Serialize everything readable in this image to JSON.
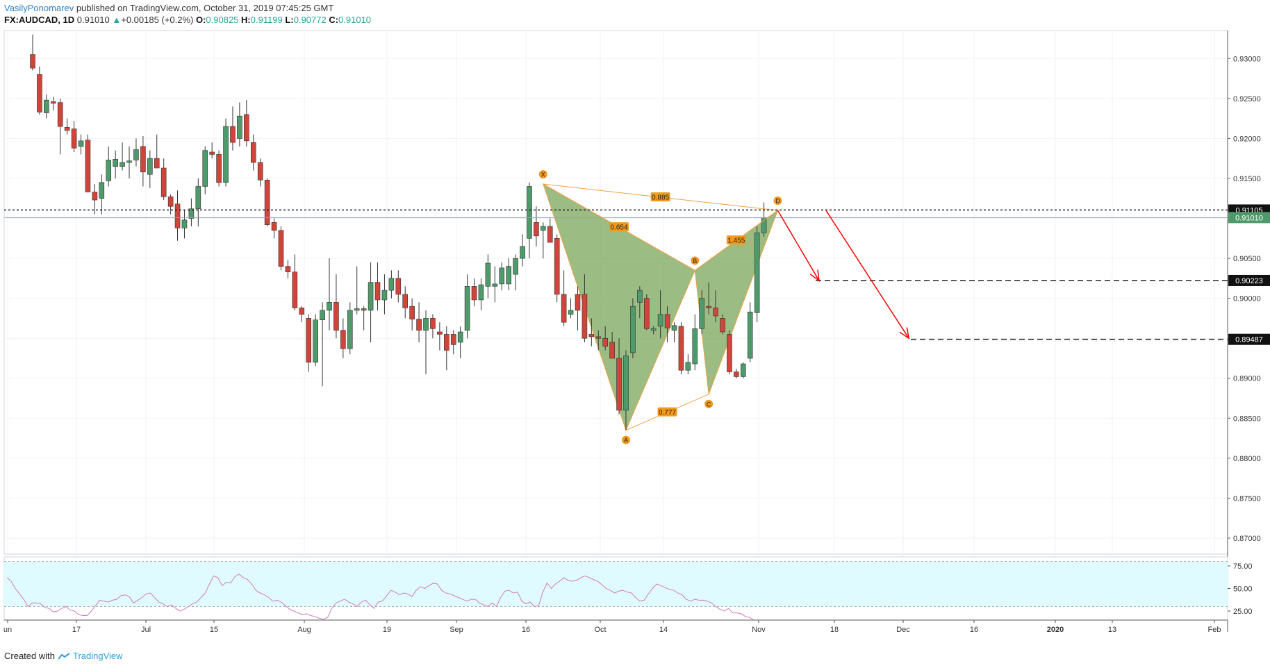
{
  "header": {
    "author": "VasilyPonomarev",
    "published": "published on TradingView.com, October 31, 2019 07:45:25 GMT",
    "symbol": "FX:AUDCAD, 1D",
    "last": "0.91010",
    "change": "+0.00185 (+0.2%)",
    "o_label": "O:",
    "o": "0.90825",
    "h_label": "H:",
    "h": "0.91199",
    "l_label": "L:",
    "l": "0.90772",
    "c_label": "C:",
    "c": "0.91010"
  },
  "footer": {
    "created": "Created with",
    "brand": "TradingView"
  },
  "colors": {
    "up": "#4f9a6b",
    "down": "#d0453a",
    "pattern_fill": "#7aa55a",
    "pattern_stroke": "#f0a040",
    "label_bg": "#f29a1e",
    "arrow": "#ff0000",
    "rsi_line": "#d279b8",
    "rsi_band": "#e0fbff"
  },
  "chart_data": [
    {
      "type": "candlestick",
      "symbol": "AUDCAD",
      "timeframe": "1D",
      "ylim": [
        0.868,
        0.9335
      ],
      "y_ticks": [
        "0.93000",
        "0.92500",
        "0.92000",
        "0.91500",
        "0.91000",
        "0.90500",
        "0.90000",
        "0.89500",
        "0.89000",
        "0.88500",
        "0.88000",
        "0.87500",
        "0.87000"
      ],
      "x_ticks": [
        "un",
        "17",
        "Jul",
        "15",
        "Aug",
        "19",
        "Sep",
        "16",
        "Oct",
        "14",
        "Nov",
        "18",
        "Dec",
        "16",
        "2020",
        "13",
        "Feb"
      ],
      "price_labels": [
        {
          "value": 0.91105,
          "text": "0.91105",
          "style": "black"
        },
        {
          "value": 0.9101,
          "text": "0.91010",
          "style": "green"
        },
        {
          "value": 0.90223,
          "text": "0.90223",
          "style": "black"
        },
        {
          "value": 0.89487,
          "text": "0.89487",
          "style": "black"
        }
      ],
      "candles": [
        {
          "o": 0.9305,
          "h": 0.933,
          "l": 0.9285,
          "c": 0.9288
        },
        {
          "o": 0.928,
          "h": 0.929,
          "l": 0.923,
          "c": 0.9233
        },
        {
          "o": 0.9232,
          "h": 0.9255,
          "l": 0.9225,
          "c": 0.9248
        },
        {
          "o": 0.9246,
          "h": 0.9252,
          "l": 0.9235,
          "c": 0.9244
        },
        {
          "o": 0.9245,
          "h": 0.925,
          "l": 0.918,
          "c": 0.9215
        },
        {
          "o": 0.9214,
          "h": 0.9225,
          "l": 0.9205,
          "c": 0.921
        },
        {
          "o": 0.9212,
          "h": 0.9222,
          "l": 0.9183,
          "c": 0.9188
        },
        {
          "o": 0.919,
          "h": 0.9205,
          "l": 0.918,
          "c": 0.9197
        },
        {
          "o": 0.9198,
          "h": 0.9205,
          "l": 0.9135,
          "c": 0.9133
        },
        {
          "o": 0.9133,
          "h": 0.9143,
          "l": 0.9105,
          "c": 0.9123
        },
        {
          "o": 0.9125,
          "h": 0.9155,
          "l": 0.9105,
          "c": 0.9145
        },
        {
          "o": 0.9147,
          "h": 0.919,
          "l": 0.914,
          "c": 0.9173
        },
        {
          "o": 0.9165,
          "h": 0.9185,
          "l": 0.915,
          "c": 0.9174
        },
        {
          "o": 0.9165,
          "h": 0.9195,
          "l": 0.916,
          "c": 0.917
        },
        {
          "o": 0.917,
          "h": 0.919,
          "l": 0.915,
          "c": 0.9172
        },
        {
          "o": 0.9173,
          "h": 0.92,
          "l": 0.9165,
          "c": 0.9186
        },
        {
          "o": 0.919,
          "h": 0.9203,
          "l": 0.914,
          "c": 0.9158
        },
        {
          "o": 0.9155,
          "h": 0.9185,
          "l": 0.9138,
          "c": 0.9175
        },
        {
          "o": 0.9175,
          "h": 0.9205,
          "l": 0.9165,
          "c": 0.9163
        },
        {
          "o": 0.9163,
          "h": 0.9175,
          "l": 0.9123,
          "c": 0.9127
        },
        {
          "o": 0.9127,
          "h": 0.913,
          "l": 0.9105,
          "c": 0.9115
        },
        {
          "o": 0.9118,
          "h": 0.9135,
          "l": 0.9072,
          "c": 0.9088
        },
        {
          "o": 0.9088,
          "h": 0.911,
          "l": 0.9075,
          "c": 0.9098
        },
        {
          "o": 0.91,
          "h": 0.9125,
          "l": 0.909,
          "c": 0.9112
        },
        {
          "o": 0.9112,
          "h": 0.915,
          "l": 0.909,
          "c": 0.914
        },
        {
          "o": 0.914,
          "h": 0.919,
          "l": 0.913,
          "c": 0.9185
        },
        {
          "o": 0.9183,
          "h": 0.9195,
          "l": 0.9175,
          "c": 0.918
        },
        {
          "o": 0.918,
          "h": 0.9185,
          "l": 0.914,
          "c": 0.9145
        },
        {
          "o": 0.9145,
          "h": 0.9225,
          "l": 0.914,
          "c": 0.9215
        },
        {
          "o": 0.9215,
          "h": 0.924,
          "l": 0.9185,
          "c": 0.9195
        },
        {
          "o": 0.92,
          "h": 0.9245,
          "l": 0.919,
          "c": 0.9228
        },
        {
          "o": 0.923,
          "h": 0.9248,
          "l": 0.919,
          "c": 0.9197
        },
        {
          "o": 0.9195,
          "h": 0.9205,
          "l": 0.916,
          "c": 0.917
        },
        {
          "o": 0.917,
          "h": 0.9175,
          "l": 0.914,
          "c": 0.9148
        },
        {
          "o": 0.9148,
          "h": 0.915,
          "l": 0.909,
          "c": 0.9092
        },
        {
          "o": 0.9095,
          "h": 0.91,
          "l": 0.9075,
          "c": 0.9085
        },
        {
          "o": 0.9085,
          "h": 0.909,
          "l": 0.9035,
          "c": 0.904
        },
        {
          "o": 0.904,
          "h": 0.9048,
          "l": 0.9025,
          "c": 0.9033
        },
        {
          "o": 0.9033,
          "h": 0.9055,
          "l": 0.8985,
          "c": 0.8988
        },
        {
          "o": 0.8988,
          "h": 0.899,
          "l": 0.897,
          "c": 0.898
        },
        {
          "o": 0.8975,
          "h": 0.898,
          "l": 0.8908,
          "c": 0.892
        },
        {
          "o": 0.892,
          "h": 0.898,
          "l": 0.8915,
          "c": 0.8973
        },
        {
          "o": 0.8973,
          "h": 0.8995,
          "l": 0.889,
          "c": 0.8985
        },
        {
          "o": 0.8985,
          "h": 0.905,
          "l": 0.896,
          "c": 0.8995
        },
        {
          "o": 0.8995,
          "h": 0.903,
          "l": 0.895,
          "c": 0.896
        },
        {
          "o": 0.896,
          "h": 0.8975,
          "l": 0.8925,
          "c": 0.8937
        },
        {
          "o": 0.8937,
          "h": 0.8995,
          "l": 0.893,
          "c": 0.8985
        },
        {
          "o": 0.8985,
          "h": 0.904,
          "l": 0.898,
          "c": 0.8987
        },
        {
          "o": 0.8987,
          "h": 0.899,
          "l": 0.896,
          "c": 0.8985
        },
        {
          "o": 0.8985,
          "h": 0.9045,
          "l": 0.8945,
          "c": 0.902
        },
        {
          "o": 0.902,
          "h": 0.9045,
          "l": 0.8985,
          "c": 0.8998
        },
        {
          "o": 0.8998,
          "h": 0.903,
          "l": 0.898,
          "c": 0.901
        },
        {
          "o": 0.901,
          "h": 0.9035,
          "l": 0.9,
          "c": 0.9025
        },
        {
          "o": 0.9025,
          "h": 0.9035,
          "l": 0.8995,
          "c": 0.9005
        },
        {
          "o": 0.9005,
          "h": 0.9015,
          "l": 0.8975,
          "c": 0.8988
        },
        {
          "o": 0.899,
          "h": 0.9,
          "l": 0.896,
          "c": 0.8974
        },
        {
          "o": 0.8974,
          "h": 0.8995,
          "l": 0.8945,
          "c": 0.896
        },
        {
          "o": 0.896,
          "h": 0.8985,
          "l": 0.8905,
          "c": 0.8975
        },
        {
          "o": 0.8975,
          "h": 0.898,
          "l": 0.895,
          "c": 0.8962
        },
        {
          "o": 0.8958,
          "h": 0.897,
          "l": 0.8935,
          "c": 0.8955
        },
        {
          "o": 0.8955,
          "h": 0.8965,
          "l": 0.891,
          "c": 0.8935
        },
        {
          "o": 0.8955,
          "h": 0.896,
          "l": 0.893,
          "c": 0.8942
        },
        {
          "o": 0.8945,
          "h": 0.8965,
          "l": 0.8925,
          "c": 0.8958
        },
        {
          "o": 0.896,
          "h": 0.903,
          "l": 0.895,
          "c": 0.9015
        },
        {
          "o": 0.9015,
          "h": 0.9025,
          "l": 0.899,
          "c": 0.8998
        },
        {
          "o": 0.8998,
          "h": 0.9025,
          "l": 0.8985,
          "c": 0.9017
        },
        {
          "o": 0.9015,
          "h": 0.9055,
          "l": 0.9,
          "c": 0.9044
        },
        {
          "o": 0.9015,
          "h": 0.904,
          "l": 0.8995,
          "c": 0.9018
        },
        {
          "o": 0.9018,
          "h": 0.9045,
          "l": 0.901,
          "c": 0.9038
        },
        {
          "o": 0.9018,
          "h": 0.905,
          "l": 0.901,
          "c": 0.904
        },
        {
          "o": 0.903,
          "h": 0.9055,
          "l": 0.901,
          "c": 0.905
        },
        {
          "o": 0.905,
          "h": 0.908,
          "l": 0.904,
          "c": 0.9065
        },
        {
          "o": 0.9075,
          "h": 0.9145,
          "l": 0.905,
          "c": 0.914
        },
        {
          "o": 0.9095,
          "h": 0.9115,
          "l": 0.9065,
          "c": 0.9078
        },
        {
          "o": 0.9085,
          "h": 0.9095,
          "l": 0.905,
          "c": 0.909
        },
        {
          "o": 0.909,
          "h": 0.91,
          "l": 0.907,
          "c": 0.907
        },
        {
          "o": 0.9075,
          "h": 0.908,
          "l": 0.8995,
          "c": 0.9005
        },
        {
          "o": 0.9005,
          "h": 0.9035,
          "l": 0.8965,
          "c": 0.897
        },
        {
          "o": 0.898,
          "h": 0.9,
          "l": 0.8975,
          "c": 0.8985
        },
        {
          "o": 0.9005,
          "h": 0.9015,
          "l": 0.896,
          "c": 0.8985
        },
        {
          "o": 0.9005,
          "h": 0.903,
          "l": 0.8945,
          "c": 0.895
        },
        {
          "o": 0.8955,
          "h": 0.8975,
          "l": 0.894,
          "c": 0.8952
        },
        {
          "o": 0.8952,
          "h": 0.896,
          "l": 0.8935,
          "c": 0.895
        },
        {
          "o": 0.895,
          "h": 0.8965,
          "l": 0.8935,
          "c": 0.894
        },
        {
          "o": 0.8945,
          "h": 0.8958,
          "l": 0.8925,
          "c": 0.8925
        },
        {
          "o": 0.8925,
          "h": 0.895,
          "l": 0.8855,
          "c": 0.886
        },
        {
          "o": 0.886,
          "h": 0.8935,
          "l": 0.8835,
          "c": 0.8928
        },
        {
          "o": 0.8932,
          "h": 0.9,
          "l": 0.8925,
          "c": 0.899
        },
        {
          "o": 0.8995,
          "h": 0.9015,
          "l": 0.8975,
          "c": 0.901
        },
        {
          "o": 0.9,
          "h": 0.9005,
          "l": 0.896,
          "c": 0.8962
        },
        {
          "o": 0.896,
          "h": 0.8965,
          "l": 0.8955,
          "c": 0.8962
        },
        {
          "o": 0.8965,
          "h": 0.901,
          "l": 0.895,
          "c": 0.898
        },
        {
          "o": 0.898,
          "h": 0.899,
          "l": 0.8945,
          "c": 0.8963
        },
        {
          "o": 0.896,
          "h": 0.897,
          "l": 0.8945,
          "c": 0.8966
        },
        {
          "o": 0.8965,
          "h": 0.897,
          "l": 0.8905,
          "c": 0.891
        },
        {
          "o": 0.891,
          "h": 0.893,
          "l": 0.8905,
          "c": 0.892
        },
        {
          "o": 0.8918,
          "h": 0.898,
          "l": 0.891,
          "c": 0.8962
        },
        {
          "o": 0.8962,
          "h": 0.901,
          "l": 0.8955,
          "c": 0.9
        },
        {
          "o": 0.899,
          "h": 0.902,
          "l": 0.898,
          "c": 0.8988
        },
        {
          "o": 0.8988,
          "h": 0.901,
          "l": 0.897,
          "c": 0.8978
        },
        {
          "o": 0.8975,
          "h": 0.898,
          "l": 0.8955,
          "c": 0.8958
        },
        {
          "o": 0.8955,
          "h": 0.896,
          "l": 0.8905,
          "c": 0.8908
        },
        {
          "o": 0.8908,
          "h": 0.8912,
          "l": 0.89,
          "c": 0.8902
        },
        {
          "o": 0.8902,
          "h": 0.892,
          "l": 0.89,
          "c": 0.8918
        },
        {
          "o": 0.8925,
          "h": 0.8995,
          "l": 0.892,
          "c": 0.8983
        },
        {
          "o": 0.8982,
          "h": 0.909,
          "l": 0.897,
          "c": 0.9082
        },
        {
          "o": 0.9082,
          "h": 0.912,
          "l": 0.9077,
          "c": 0.9101
        }
      ],
      "pattern": {
        "name": "XABCD",
        "points": [
          {
            "label": "X",
            "i": 74,
            "price": 0.9143
          },
          {
            "label": "A",
            "i": 86,
            "price": 0.8835
          },
          {
            "label": "B",
            "i": 96,
            "price": 0.9035
          },
          {
            "label": "C",
            "i": 98,
            "price": 0.888
          },
          {
            "label": "D",
            "i": 108,
            "price": 0.911
          }
        ],
        "ratios": [
          "0.654",
          "0.777",
          "1.455",
          "0.885"
        ]
      },
      "targets": [
        {
          "from": [
            108,
            0.911
          ],
          "to": [
            114,
            0.9022
          ]
        },
        {
          "from": [
            115,
            0.911
          ],
          "to": [
            127,
            0.895
          ]
        }
      ]
    },
    {
      "type": "line",
      "name": "RSI",
      "ylim": [
        15,
        85
      ],
      "y_ticks": [
        "75.00",
        "50.00",
        "25.00"
      ],
      "band": [
        30,
        80
      ],
      "values": [
        62,
        58,
        50,
        44,
        38,
        30,
        34,
        34,
        33,
        29,
        28,
        24,
        25,
        28,
        30,
        26,
        25,
        21,
        20,
        20,
        25,
        31,
        37,
        36,
        35,
        37,
        38,
        42,
        43,
        41,
        34,
        37,
        40,
        44,
        45,
        40,
        35,
        33,
        30,
        32,
        28,
        25,
        27,
        30,
        33,
        35,
        40,
        45,
        55,
        64,
        62,
        53,
        57,
        56,
        63,
        66,
        62,
        60,
        55,
        48,
        45,
        43,
        40,
        36,
        37,
        35,
        31,
        27,
        25,
        23,
        21,
        22,
        20,
        19,
        17,
        16,
        18,
        28,
        34,
        36,
        38,
        35,
        33,
        30,
        35,
        37,
        32,
        28,
        35,
        36,
        42,
        48,
        46,
        43,
        45,
        44,
        41,
        48,
        52,
        50,
        53,
        56,
        55,
        48,
        45,
        44,
        42,
        40,
        38,
        36,
        38,
        38,
        34,
        32,
        30,
        34,
        30,
        40,
        47,
        48,
        45,
        46,
        36,
        33,
        35,
        30,
        31,
        46,
        56,
        50,
        55,
        58,
        62,
        59,
        58,
        59,
        62,
        64,
        62,
        60,
        58,
        54,
        50,
        48,
        45,
        47,
        48,
        46,
        45,
        40,
        36,
        37,
        44,
        50,
        55,
        53,
        51,
        49,
        48,
        45,
        43,
        38,
        36,
        38,
        37,
        37,
        36,
        34,
        30,
        27,
        25,
        28,
        23,
        23,
        22,
        19,
        18,
        15
      ]
    }
  ]
}
